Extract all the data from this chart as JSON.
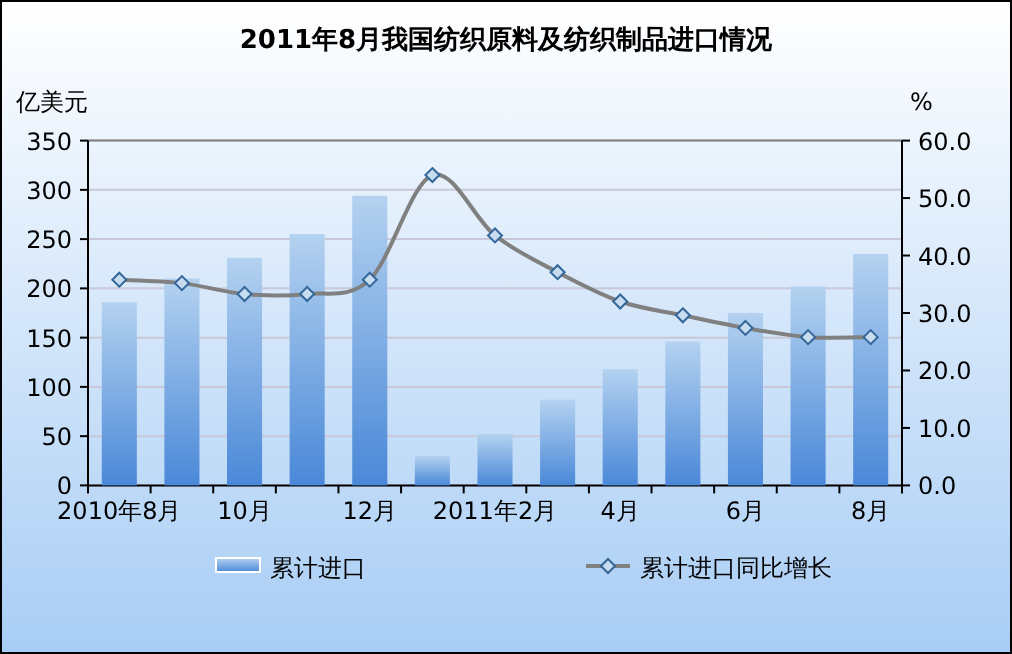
{
  "chart_data": {
    "type": "bar",
    "title": "2011年8月我国纺织原料及纺织制品进口情况",
    "ylabel": "亿美元",
    "y2label": "%",
    "categories": [
      "2010年8月",
      null,
      "10月",
      null,
      "12月",
      null,
      "2011年2月",
      null,
      "4月",
      null,
      "6月",
      null,
      "8月"
    ],
    "series": [
      {
        "name": "累计进口",
        "color": "#4a88d8",
        "values": [
          186,
          210,
          231,
          255,
          294,
          30,
          52,
          87,
          118,
          146,
          175,
          202,
          235
        ]
      },
      {
        "name": "累计进口同比增长",
        "type": "line",
        "axis": "y2",
        "color": "#808080",
        "marker": "diamond",
        "values": [
          35.8,
          35.2,
          33.3,
          33.3,
          35.8,
          54.0,
          43.5,
          37.1,
          32.0,
          29.6,
          27.4,
          25.8,
          25.8
        ]
      }
    ],
    "ylim": [
      0,
      350
    ],
    "yticks": [
      0,
      50,
      100,
      150,
      200,
      250,
      300,
      350
    ],
    "y2lim": [
      0,
      60
    ],
    "y2ticks": [
      {
        "value": 0,
        "label": "0.0"
      },
      {
        "value": 10,
        "label": "10.0"
      },
      {
        "value": 20,
        "label": "20.0"
      },
      {
        "value": 30,
        "label": "30.0"
      },
      {
        "value": 40,
        "label": "40.0"
      },
      {
        "value": 50,
        "label": "50.0"
      },
      {
        "value": 60,
        "label": "60.0"
      }
    ],
    "grid": "y",
    "legend": "bottom"
  }
}
